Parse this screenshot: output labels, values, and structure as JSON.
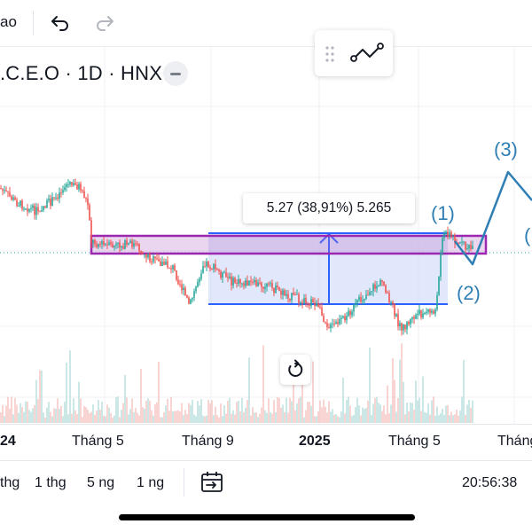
{
  "topbar": {
    "partial_text": "ao",
    "undo_icon": "undo-icon",
    "redo_icon": "redo-icon"
  },
  "legend": {
    "symbol": ".C.E.O · 1D · HNX",
    "hide_icon": "minus-icon"
  },
  "drawing_toolbar": {
    "grip_icon": "drag-handle-icon",
    "tool_icon": "trend-line-tool-icon"
  },
  "measure": {
    "label": "5.27 (38,91%) 5.265"
  },
  "elliott_wave": {
    "labels": [
      "(1)",
      "(2)",
      "(3)",
      "("
    ]
  },
  "chart_data": {
    "type": "candlestick",
    "x_tick_labels": [
      "24",
      "Tháng 5",
      "Tháng 9",
      "2025",
      "Tháng 5",
      "Tháng"
    ],
    "measure_change": 5.27,
    "measure_percent": "38,91%",
    "measure_bars": 5.265,
    "colors": {
      "up": "#26a69a",
      "down": "#ef5350",
      "rectangle": "#9c27b0",
      "measure": "#2962ff",
      "wave": "#2f7fb5"
    }
  },
  "bottombar": {
    "ranges": [
      "thg",
      "1 thg",
      "5 ng",
      "1 ng"
    ],
    "date_range_icon": "calendar-goto-icon",
    "clock": "20:56:38"
  },
  "reset_icon": "reset-chart-icon"
}
